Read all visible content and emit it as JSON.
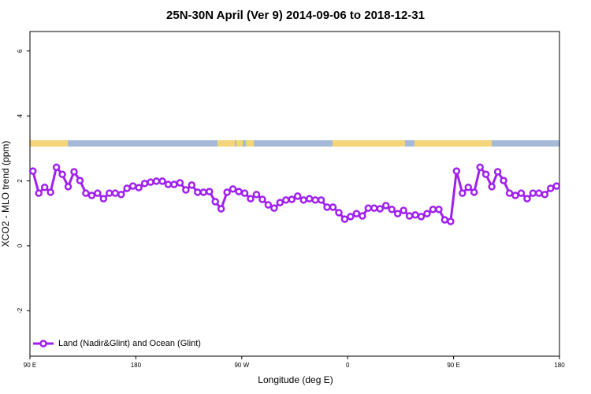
{
  "chart_data": {
    "type": "line",
    "title": "25N-30N April (Ver 9)   2014-09-06 to 2018-12-31",
    "xlabel": "Longitude (deg E)",
    "ylabel": "XCO2 - MLO trend (ppm)",
    "xlim": [
      90,
      540
    ],
    "ylim": [
      -3.4,
      6.6
    ],
    "xticks": [
      {
        "value": 90,
        "label": "90 E"
      },
      180,
      {
        "value": 270,
        "label": "90 W"
      },
      {
        "value": 360,
        "label": "0"
      },
      {
        "value": 450,
        "label": "90 E"
      },
      {
        "value": 540,
        "label": "180"
      }
    ],
    "yticks": [
      -2,
      0,
      2,
      4,
      6
    ],
    "legend": "bottom-left",
    "x": [
      92.5,
      97.5,
      102.5,
      107.5,
      112.5,
      117.5,
      122.5,
      127.5,
      132.5,
      137.5,
      142.5,
      147.5,
      152.5,
      157.5,
      162.5,
      167.5,
      172.5,
      177.5,
      182.5,
      187.5,
      192.5,
      197.5,
      202.5,
      207.5,
      212.5,
      217.5,
      222.5,
      227.5,
      232.5,
      237.5,
      242.5,
      247.5,
      252.5,
      257.5,
      262.5,
      267.5,
      272.5,
      277.5,
      282.5,
      287.5,
      292.5,
      297.5,
      302.5,
      307.5,
      312.5,
      317.5,
      322.5,
      327.5,
      332.5,
      337.5,
      342.5,
      347.5,
      352.5,
      357.5,
      362.5,
      367.5,
      372.5,
      377.5,
      382.5,
      387.5,
      392.5,
      397.5,
      402.5,
      407.5,
      412.5,
      417.5,
      422.5,
      427.5,
      432.5,
      437.5,
      442.5,
      447.5,
      452.5,
      457.5,
      462.5,
      467.5,
      472.5,
      477.5,
      482.5,
      487.5,
      492.5,
      497.5,
      502.5,
      507.5,
      512.5,
      517.5,
      522.5,
      527.5,
      532.5,
      537.5
    ],
    "series": [
      {
        "name": "Land (Nadir&Glint) and Ocean (Glint)",
        "color": "#a020f0",
        "values": [
          2.3,
          1.62,
          1.8,
          1.65,
          2.42,
          2.2,
          1.82,
          2.28,
          2.01,
          1.62,
          1.55,
          1.62,
          1.45,
          1.62,
          1.62,
          1.58,
          1.77,
          1.84,
          1.79,
          1.92,
          1.96,
          1.99,
          1.99,
          1.89,
          1.89,
          1.94,
          1.72,
          1.87,
          1.65,
          1.65,
          1.67,
          1.36,
          1.14,
          1.65,
          1.75,
          1.67,
          1.62,
          1.45,
          1.58,
          1.43,
          1.26,
          1.16,
          1.33,
          1.41,
          1.43,
          1.53,
          1.41,
          1.45,
          1.41,
          1.41,
          1.19,
          1.19,
          1.02,
          0.82,
          0.9,
          0.99,
          0.92,
          1.16,
          1.16,
          1.14,
          1.24,
          1.12,
          0.99,
          1.09,
          0.92,
          0.95,
          0.9,
          0.99,
          1.12,
          1.12,
          0.8,
          0.75,
          2.3,
          1.62,
          1.8,
          1.65,
          2.42,
          2.2,
          1.82,
          2.28,
          2.01,
          1.62,
          1.55,
          1.62,
          1.45,
          1.62,
          1.62,
          1.58,
          1.77,
          1.84
        ]
      }
    ]
  }
}
